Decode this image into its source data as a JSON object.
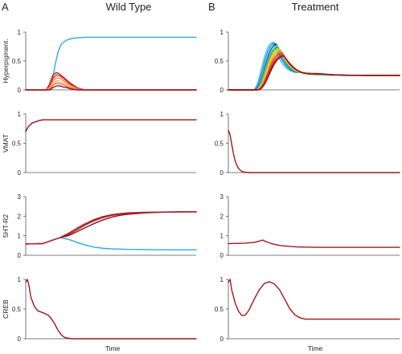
{
  "figure": {
    "panels": [
      {
        "letter": "A",
        "title": "Wild Type"
      },
      {
        "letter": "B",
        "title": "Treatment"
      }
    ],
    "xlabel": "Time"
  },
  "chart_data": [
    {
      "type": "line",
      "column": 0,
      "row": 0,
      "ylabel": "Hyperpigment.",
      "ylim": [
        0,
        1
      ],
      "yticks": [
        0,
        0.5,
        1
      ],
      "ytick_labels": [
        "0",
        "0.5",
        "1"
      ],
      "xlim": [
        0,
        100
      ],
      "series": [
        {
          "color": "#2aa9e6",
          "x": [
            0,
            3,
            5,
            7,
            9,
            11,
            13,
            15,
            17,
            19,
            21,
            24,
            27,
            30,
            35,
            40,
            50,
            60,
            70,
            80,
            90,
            100
          ],
          "y": [
            0,
            0,
            0,
            0,
            0,
            0,
            0,
            0.02,
            0.4,
            0.66,
            0.8,
            0.86,
            0.89,
            0.9,
            0.91,
            0.91,
            0.91,
            0.91,
            0.91,
            0.91,
            0.91,
            0.91
          ]
        },
        {
          "color": "#b0171f",
          "x": [
            0,
            8,
            10,
            12,
            14,
            16,
            18,
            20,
            22,
            24,
            26,
            28,
            30,
            32,
            35,
            40,
            100
          ],
          "y": [
            0,
            0,
            0,
            0,
            0.1,
            0.26,
            0.3,
            0.27,
            0.22,
            0.17,
            0.12,
            0.08,
            0.04,
            0.02,
            0,
            0,
            0
          ]
        },
        {
          "color": "#e8383d",
          "x": [
            0,
            8,
            10,
            12,
            14,
            16,
            18,
            20,
            22,
            24,
            26,
            28,
            30,
            32,
            35,
            40,
            100
          ],
          "y": [
            0,
            0,
            0,
            0,
            0.06,
            0.2,
            0.26,
            0.24,
            0.2,
            0.15,
            0.1,
            0.06,
            0.03,
            0.01,
            0,
            0,
            0
          ]
        },
        {
          "color": "#f28a30",
          "x": [
            0,
            8,
            10,
            12,
            14,
            16,
            18,
            20,
            22,
            24,
            26,
            28,
            30,
            32,
            35,
            40,
            100
          ],
          "y": [
            0,
            0,
            0,
            0,
            0.04,
            0.16,
            0.21,
            0.2,
            0.16,
            0.12,
            0.08,
            0.05,
            0.02,
            0.01,
            0,
            0,
            0
          ]
        },
        {
          "color": "#f5b85a",
          "x": [
            0,
            8,
            10,
            12,
            14,
            16,
            18,
            20,
            22,
            24,
            26,
            28,
            30,
            32,
            35,
            40,
            100
          ],
          "y": [
            0,
            0,
            0,
            0,
            0.02,
            0.12,
            0.16,
            0.15,
            0.12,
            0.09,
            0.06,
            0.03,
            0.01,
            0,
            0,
            0,
            0
          ]
        },
        {
          "color": "#e06666",
          "x": [
            0,
            8,
            10,
            12,
            14,
            16,
            18,
            20,
            22,
            24,
            26,
            28,
            30,
            32,
            35,
            40,
            100
          ],
          "y": [
            0,
            0,
            0,
            0,
            0.01,
            0.08,
            0.12,
            0.11,
            0.09,
            0.06,
            0.04,
            0.02,
            0.01,
            0,
            0,
            0,
            0
          ]
        },
        {
          "color": "#a0172a",
          "x": [
            0,
            8,
            10,
            12,
            14,
            16,
            18,
            20,
            22,
            24,
            26,
            28,
            30,
            32,
            35,
            40,
            100
          ],
          "y": [
            0,
            0,
            0,
            0,
            0,
            0.04,
            0.07,
            0.07,
            0.05,
            0.04,
            0.02,
            0.01,
            0,
            0,
            0,
            0,
            0
          ]
        }
      ]
    },
    {
      "type": "line",
      "column": 0,
      "row": 1,
      "ylabel": "VMAT",
      "ylim": [
        0,
        1
      ],
      "yticks": [
        0,
        0.5,
        1
      ],
      "ytick_labels": [
        "0",
        "0.5",
        "1"
      ],
      "xlim": [
        0,
        100
      ],
      "series": [
        {
          "color": "#2aa9e6",
          "x": [
            0,
            1,
            2,
            4,
            6,
            8,
            10,
            14,
            20,
            30,
            100
          ],
          "y": [
            0.7,
            0.76,
            0.8,
            0.85,
            0.87,
            0.89,
            0.9,
            0.9,
            0.9,
            0.9,
            0.9
          ]
        },
        {
          "color": "#a0171a",
          "x": [
            0,
            1,
            2,
            4,
            6,
            8,
            10,
            14,
            20,
            30,
            100
          ],
          "y": [
            0.7,
            0.76,
            0.8,
            0.85,
            0.87,
            0.89,
            0.9,
            0.9,
            0.9,
            0.9,
            0.9
          ]
        }
      ]
    },
    {
      "type": "line",
      "column": 0,
      "row": 2,
      "ylabel": "5HT-R2",
      "ylim": [
        0,
        3
      ],
      "yticks": [
        0,
        1,
        2,
        3
      ],
      "ytick_labels": [
        "0",
        "1",
        "2",
        "3"
      ],
      "xlim": [
        0,
        100
      ],
      "series": [
        {
          "color": "#2aa9e6",
          "x": [
            0,
            10,
            15,
            20,
            25,
            30,
            35,
            40,
            45,
            50,
            60,
            70,
            80,
            90,
            100
          ],
          "y": [
            0.58,
            0.6,
            0.75,
            0.9,
            0.82,
            0.66,
            0.52,
            0.42,
            0.36,
            0.33,
            0.3,
            0.29,
            0.28,
            0.28,
            0.28
          ]
        },
        {
          "color": "#a0171a",
          "x": [
            0,
            10,
            15,
            20,
            25,
            30,
            35,
            40,
            45,
            50,
            55,
            60,
            70,
            80,
            90,
            100
          ],
          "y": [
            0.58,
            0.6,
            0.75,
            0.9,
            1.12,
            1.38,
            1.62,
            1.82,
            1.97,
            2.07,
            2.13,
            2.17,
            2.2,
            2.21,
            2.22,
            2.22
          ]
        },
        {
          "color": "#8b0f14",
          "x": [
            0,
            10,
            15,
            20,
            25,
            30,
            35,
            40,
            45,
            50,
            55,
            60,
            70,
            80,
            90,
            100
          ],
          "y": [
            0.58,
            0.6,
            0.75,
            0.9,
            1.0,
            1.2,
            1.42,
            1.62,
            1.8,
            1.94,
            2.04,
            2.1,
            2.17,
            2.2,
            2.22,
            2.22
          ]
        },
        {
          "color": "#b3202a",
          "x": [
            0,
            10,
            15,
            20,
            25,
            30,
            35,
            40,
            45,
            50,
            55,
            60,
            70,
            80,
            90,
            100
          ],
          "y": [
            0.58,
            0.6,
            0.75,
            0.9,
            1.05,
            1.3,
            1.55,
            1.76,
            1.92,
            2.03,
            2.1,
            2.15,
            2.19,
            2.21,
            2.22,
            2.22
          ]
        }
      ]
    },
    {
      "type": "line",
      "column": 0,
      "row": 3,
      "ylabel": "CREB",
      "ylim": [
        0,
        1
      ],
      "yticks": [
        0,
        0.5,
        1
      ],
      "ytick_labels": [
        "0",
        "0.5",
        "1"
      ],
      "xlim": [
        0,
        100
      ],
      "series": [
        {
          "color": "#a0171a",
          "x": [
            0,
            1,
            2,
            3,
            5,
            7,
            10,
            13,
            15,
            17,
            19,
            21,
            23,
            25,
            27,
            30,
            35,
            100
          ],
          "y": [
            0.95,
            1.0,
            0.88,
            0.7,
            0.55,
            0.47,
            0.44,
            0.4,
            0.34,
            0.25,
            0.14,
            0.06,
            0.02,
            0.01,
            0,
            0,
            0,
            0
          ]
        }
      ]
    },
    {
      "type": "line",
      "column": 1,
      "row": 0,
      "ylabel": "",
      "ylim": [
        0,
        1
      ],
      "yticks": [
        0,
        0.5,
        1
      ],
      "ytick_labels": [
        "0",
        "0.5",
        "1"
      ],
      "xlim": [
        0,
        100
      ],
      "series": [
        {
          "color": "#34c6e8",
          "peak_x": 26,
          "peak_y": 0.84,
          "width": 7.5
        },
        {
          "color": "#1f8fd9",
          "peak_x": 27,
          "peak_y": 0.83,
          "width": 7.8
        },
        {
          "color": "#1b3fb0",
          "peak_x": 28,
          "peak_y": 0.81,
          "width": 8
        },
        {
          "color": "#4fd1c5",
          "peak_x": 28.5,
          "peak_y": 0.78,
          "width": 8.2
        },
        {
          "color": "#2db34a",
          "peak_x": 29,
          "peak_y": 0.76,
          "width": 8.4
        },
        {
          "color": "#9ccc3a",
          "peak_x": 29.5,
          "peak_y": 0.74,
          "width": 8.6
        },
        {
          "color": "#f2dc34",
          "peak_x": 30,
          "peak_y": 0.72,
          "width": 8.8
        },
        {
          "color": "#f5a623",
          "peak_x": 30.5,
          "peak_y": 0.7,
          "width": 9
        },
        {
          "color": "#ef7a1a",
          "peak_x": 31,
          "peak_y": 0.67,
          "width": 9.2
        },
        {
          "color": "#e8383d",
          "peak_x": 31.5,
          "peak_y": 0.65,
          "width": 9.4
        },
        {
          "color": "#c81d25",
          "peak_x": 32,
          "peak_y": 0.62,
          "width": 9.6
        },
        {
          "color": "#8b0f14",
          "peak_x": 32.5,
          "peak_y": 0.6,
          "width": 9.8
        }
      ],
      "steady_state": 0.25
    },
    {
      "type": "line",
      "column": 1,
      "row": 1,
      "ylabel": "",
      "ylim": [
        0,
        1
      ],
      "yticks": [
        0,
        0.5,
        1
      ],
      "ytick_labels": [
        "0",
        "0.5",
        "1"
      ],
      "xlim": [
        0,
        100
      ],
      "series": [
        {
          "color": "#a0171a",
          "x": [
            0,
            1,
            2,
            3,
            4,
            5,
            6,
            7,
            8,
            9,
            10,
            12,
            14,
            16,
            20,
            30,
            100
          ],
          "y": [
            0.72,
            0.65,
            0.48,
            0.32,
            0.2,
            0.12,
            0.07,
            0.04,
            0.02,
            0.01,
            0.005,
            0,
            0,
            0,
            0,
            0,
            0
          ]
        }
      ]
    },
    {
      "type": "line",
      "column": 1,
      "row": 2,
      "ylabel": "",
      "ylim": [
        0,
        3
      ],
      "yticks": [
        0,
        1,
        2,
        3
      ],
      "ytick_labels": [
        "0",
        "1",
        "2",
        "3"
      ],
      "xlim": [
        0,
        100
      ],
      "series": [
        {
          "color": "#a0171a",
          "x": [
            0,
            10,
            15,
            18,
            20,
            22,
            25,
            28,
            30,
            35,
            40,
            45,
            50,
            60,
            70,
            80,
            90,
            100
          ],
          "y": [
            0.6,
            0.62,
            0.66,
            0.72,
            0.78,
            0.7,
            0.6,
            0.54,
            0.5,
            0.46,
            0.43,
            0.42,
            0.41,
            0.41,
            0.41,
            0.41,
            0.41,
            0.41
          ]
        }
      ]
    },
    {
      "type": "line",
      "column": 1,
      "row": 3,
      "ylabel": "",
      "ylim": [
        0,
        1
      ],
      "yticks": [
        0,
        0.5,
        1
      ],
      "ytick_labels": [
        "0",
        "0.5",
        "1"
      ],
      "xlim": [
        0,
        100
      ],
      "series": [
        {
          "color": "#a0171a",
          "x": [
            0,
            1,
            2,
            4,
            6,
            8,
            10,
            12,
            15,
            18,
            21,
            24,
            27,
            30,
            33,
            36,
            39,
            42,
            45,
            50,
            55,
            60,
            70,
            80,
            90,
            100
          ],
          "y": [
            0.95,
            1.0,
            0.82,
            0.6,
            0.46,
            0.39,
            0.4,
            0.48,
            0.66,
            0.82,
            0.93,
            0.96,
            0.92,
            0.82,
            0.66,
            0.5,
            0.4,
            0.35,
            0.33,
            0.33,
            0.33,
            0.33,
            0.33,
            0.33,
            0.33,
            0.33
          ]
        }
      ]
    }
  ]
}
